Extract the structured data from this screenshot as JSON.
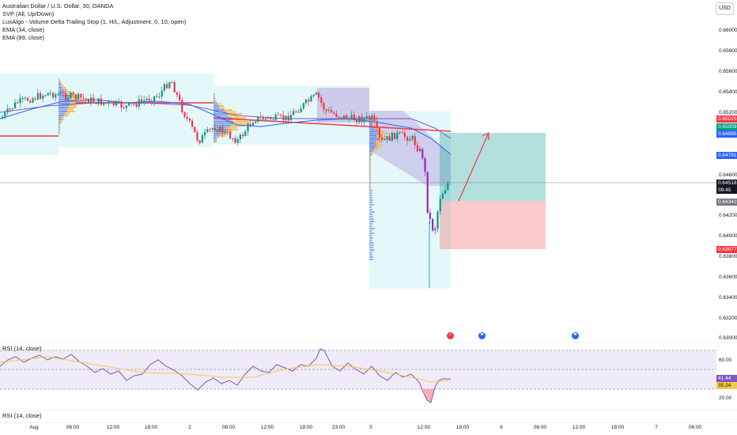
{
  "legend": {
    "title": "Australian Dollar / U.S. Dollar, 30, OANDA",
    "indicators": [
      "SVP (All, Up/Down)",
      "LuxAlgo - Volume Delta Trailing Stop (1, H/L, Adjustment, 0, 10, open)",
      "EMA (34, close)",
      "EMA (89, close)"
    ]
  },
  "currency_button": "USD",
  "price_axis": {
    "labels": [
      "0.66000",
      "0.65800",
      "0.65600",
      "0.65400",
      "0.65200",
      "0.64600",
      "0.64200",
      "0.64000",
      "0.63800",
      "0.63600",
      "0.63400",
      "0.63200",
      "0.63000"
    ],
    "tags": [
      {
        "value": "0.65025",
        "color": "#f23645"
      },
      {
        "value": "0.65009",
        "color": "#089981"
      },
      {
        "value": "0.64995",
        "color": "#2962ff"
      },
      {
        "value": "0.64791",
        "color": "#2962ff"
      },
      {
        "value": "0.64518",
        "color": "#131722"
      },
      {
        "value": "09:45",
        "color": "#131722"
      },
      {
        "value": "0.64342",
        "color": "#787b86"
      },
      {
        "value": "0.63877",
        "color": "#f23645"
      }
    ]
  },
  "rsi": {
    "legend": "RSI (14, close)",
    "axis_labels": [
      "60.00",
      "20.00"
    ],
    "tags": [
      {
        "value": "41.44",
        "color": "#7e57c2"
      },
      {
        "value": "35.24",
        "color": "#f7c948"
      }
    ]
  },
  "rsi2": {
    "legend": "RSI (14, close)"
  },
  "time_axis": {
    "labels": [
      "Aug",
      "06:00",
      "12:00",
      "18:00",
      "2",
      "06:00",
      "12:00",
      "18:00",
      "23:00",
      "5",
      "12:00",
      "18:00",
      "6",
      "06:00",
      "12:00",
      "18:00",
      "7",
      "06:00"
    ]
  },
  "colors": {
    "up": "#089981",
    "down": "#f23645",
    "purple": "#9c27b0",
    "ema34": "#2962ff",
    "ema89": "#7e57c2",
    "trail": "#f23645",
    "profit_zone": "#26a69a",
    "loss_zone": "#ef5350"
  },
  "icons": [
    "lightning-event-icon",
    "us-flag-event-icon",
    "us-flag-event-icon"
  ]
}
